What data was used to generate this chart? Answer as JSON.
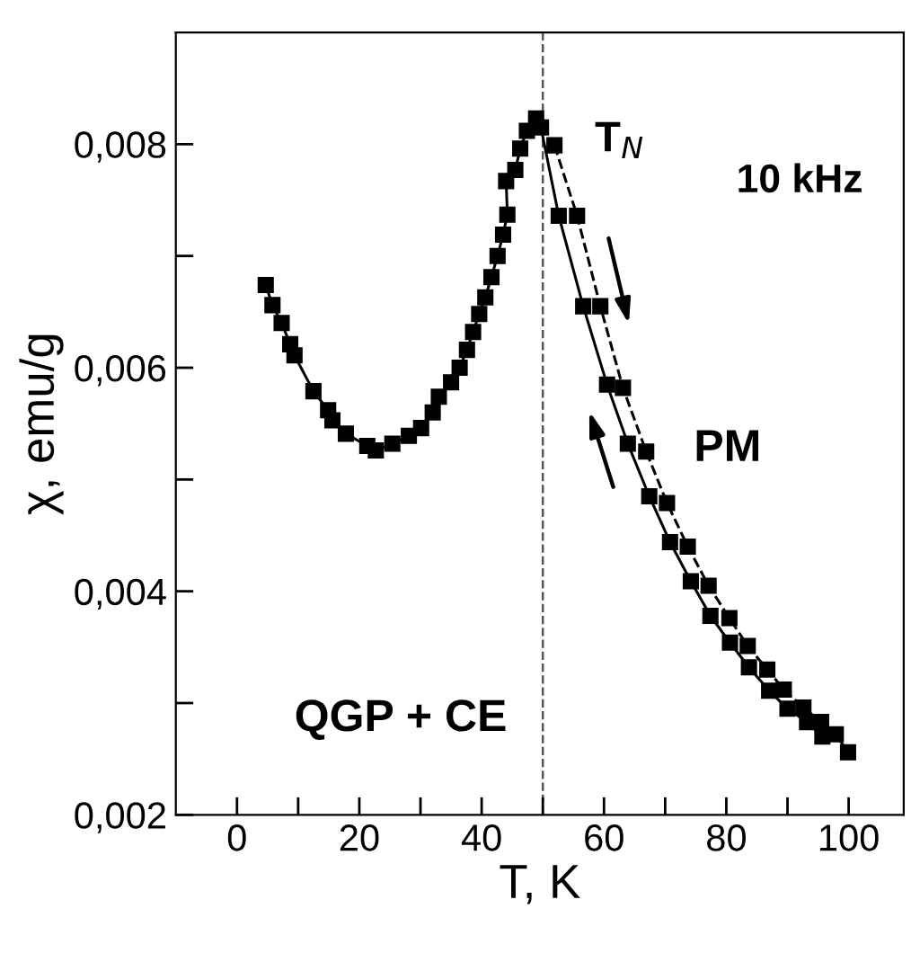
{
  "chart_data": {
    "type": "line",
    "xlabel": "T, K",
    "ylabel": "χ, emu/g",
    "xlim": [
      -10,
      109
    ],
    "ylim": [
      0.002,
      0.009
    ],
    "xticks": [
      0,
      {
        "value": 10,
        "label": null
      },
      20,
      {
        "value": 30,
        "label": null
      },
      40,
      {
        "value": 50,
        "label": null
      },
      60,
      {
        "value": 70,
        "label": null
      },
      80,
      {
        "value": 90,
        "label": null
      },
      100
    ],
    "yticks": [
      {
        "value": 0.002,
        "label": "0,002"
      },
      {
        "value": 0.003,
        "label": null
      },
      {
        "value": 0.004,
        "label": "0,004"
      },
      {
        "value": 0.005,
        "label": null
      },
      {
        "value": 0.006,
        "label": "0,006"
      },
      {
        "value": 0.007,
        "label": null
      },
      {
        "value": 0.008,
        "label": "0,008"
      }
    ],
    "marker": "square",
    "grid": false,
    "legend": false,
    "ref_lines": [
      {
        "axis": "x",
        "value": 50,
        "label": null,
        "color": "#555555",
        "line_style": "dashed"
      }
    ],
    "annotations": [
      "T$_{N}$",
      "10 kHz",
      "PM",
      "QGP + CE"
    ],
    "series": [
      {
        "color": "#000000",
        "line_style": "solid",
        "x": [
          4.7,
          5.8,
          7.3,
          8.7,
          9.4,
          12.5,
          14.9,
          15.6,
          17.8,
          21.3,
          22.7,
          25.4,
          28.1,
          30.1,
          32,
          33,
          35,
          36.4,
          37.6,
          38.6,
          39.6,
          40.6,
          41.6,
          42.6,
          43.5,
          44.2,
          44,
          45.5,
          46.3,
          47.4,
          48.9,
          49.7,
          52.6,
          56.6,
          60.5,
          63.9,
          67.4,
          70.8,
          74.2,
          77.4,
          80.6,
          83.7,
          87,
          90,
          93.2,
          95.7
        ],
        "values": [
          0.00674,
          0.00656,
          0.0064,
          0.00621,
          0.00611,
          0.00579,
          0.00562,
          0.00553,
          0.00541,
          0.0053,
          0.00526,
          0.00532,
          0.00539,
          0.00546,
          0.0056,
          0.00574,
          0.00587,
          0.006,
          0.00616,
          0.00632,
          0.00648,
          0.00663,
          0.00681,
          0.007,
          0.00719,
          0.00737,
          0.00767,
          0.00777,
          0.00796,
          0.00812,
          0.00823,
          0.00815,
          0.00736,
          0.00655,
          0.00585,
          0.00532,
          0.00485,
          0.00444,
          0.00409,
          0.00378,
          0.00354,
          0.00332,
          0.00311,
          0.00295,
          0.00283,
          0.0027
        ]
      },
      {
        "color": "#000000",
        "line_style": "dashed",
        "x": [
          51.9,
          55.6,
          59.4,
          63.1,
          66.9,
          70.3,
          73.7,
          77.1,
          80.5,
          83.5,
          86.7,
          89.4,
          92.6,
          95.5,
          97.9,
          99.9
        ],
        "values": [
          0.00799,
          0.00736,
          0.00655,
          0.00582,
          0.00525,
          0.00479,
          0.0044,
          0.00405,
          0.00376,
          0.00351,
          0.0033,
          0.00312,
          0.00296,
          0.00283,
          0.00272,
          0.00256
        ]
      }
    ]
  }
}
